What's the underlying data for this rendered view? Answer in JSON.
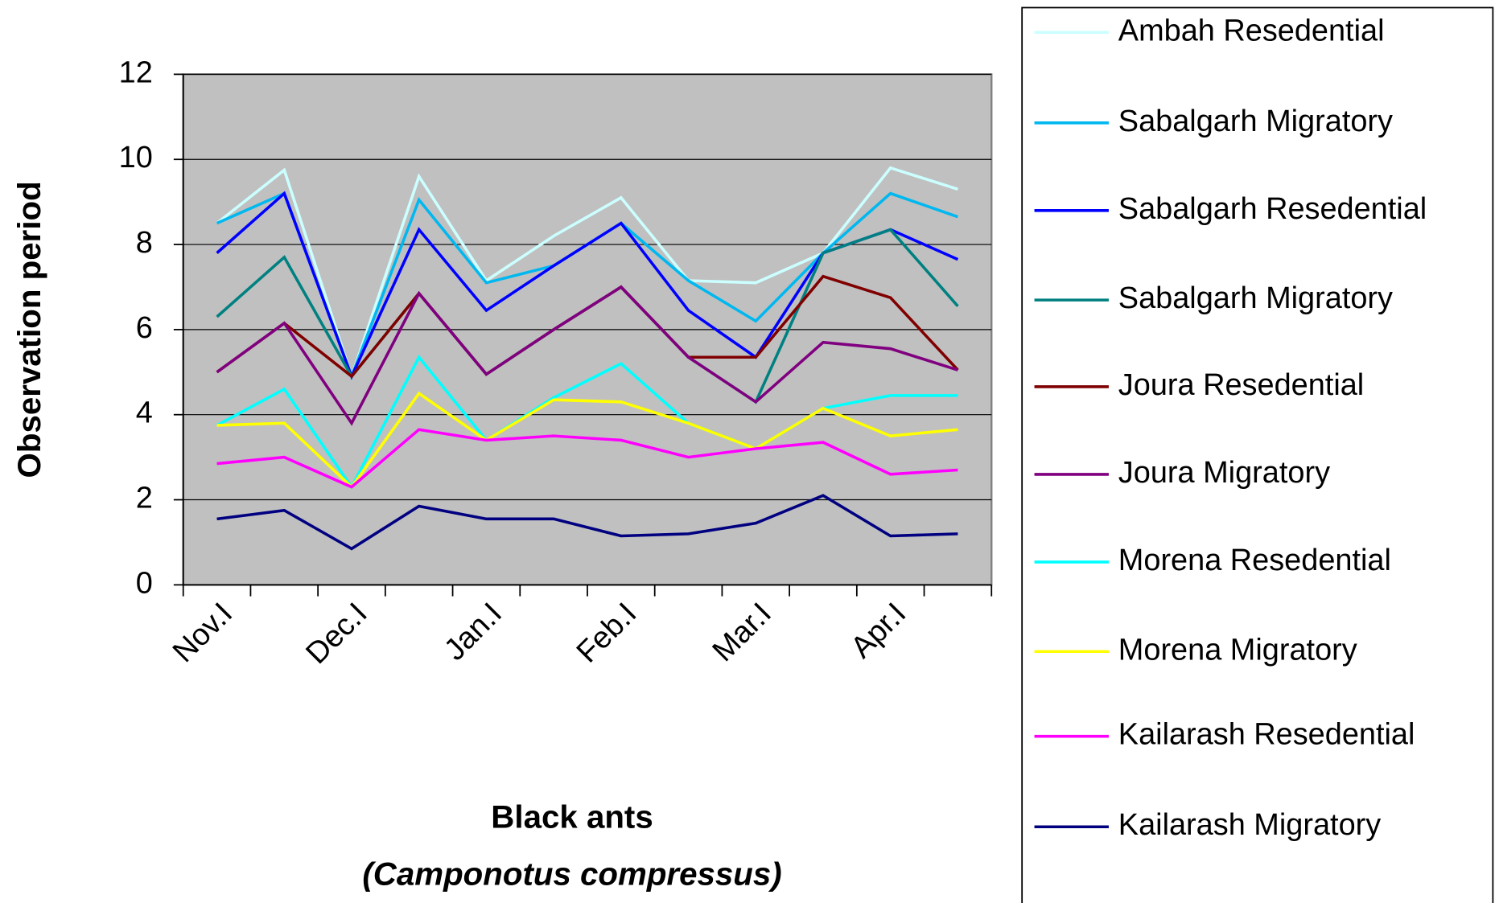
{
  "chart_data": {
    "type": "line",
    "ylabel": "Observation period",
    "xlabel": "Black ants",
    "xlabel_2": "(Camponotus compressus)",
    "categories": [
      "Nov.I",
      null,
      "Dec.I",
      null,
      "Jan.I",
      null,
      "Feb.I",
      null,
      "Mar.I",
      null,
      "Apr.I",
      null
    ],
    "ylim": [
      0,
      12
    ],
    "yticks": [
      0,
      2,
      4,
      6,
      8,
      10,
      12
    ],
    "grid": true,
    "legend": "right",
    "series": [
      {
        "name": "Ambah Resedential",
        "color": "#ccffff",
        "values": [
          8.5,
          9.75,
          4.9,
          9.6,
          7.15,
          8.2,
          9.1,
          7.15,
          7.1,
          7.8,
          9.8,
          9.3
        ]
      },
      {
        "name": "Sabalgarh Migratory",
        "color": "#00b8f0",
        "values": [
          8.5,
          9.2,
          4.9,
          9.05,
          7.1,
          7.5,
          8.5,
          7.15,
          6.2,
          7.8,
          9.2,
          8.65
        ]
      },
      {
        "name": "Sabalgarh Resedential",
        "color": "#0000ff",
        "values": [
          7.8,
          9.2,
          4.9,
          8.35,
          6.45,
          7.5,
          8.5,
          6.45,
          5.35,
          7.8,
          8.35,
          7.65
        ]
      },
      {
        "name": "Sabalgarh Migratory",
        "color": "#008080",
        "values": [
          6.3,
          7.7,
          4.9,
          6.85,
          4.95,
          6.0,
          7.0,
          5.35,
          4.3,
          7.8,
          8.35,
          6.55
        ]
      },
      {
        "name": "Joura Resedential",
        "color": "#800000",
        "values": [
          5.0,
          6.15,
          4.9,
          6.85,
          4.95,
          6.0,
          7.0,
          5.35,
          5.35,
          7.25,
          6.75,
          5.05
        ]
      },
      {
        "name": "Joura Migratory",
        "color": "#800080",
        "values": [
          5.0,
          6.15,
          3.8,
          6.85,
          4.95,
          6.0,
          7.0,
          5.35,
          4.3,
          5.7,
          5.55,
          5.05
        ]
      },
      {
        "name": "Morena Resedential",
        "color": "#00ffff",
        "values": [
          3.75,
          4.6,
          2.3,
          5.35,
          3.4,
          4.4,
          5.2,
          3.8,
          3.2,
          4.15,
          4.45,
          4.45
        ]
      },
      {
        "name": "Morena Migratory",
        "color": "#ffff00",
        "values": [
          3.75,
          3.8,
          2.3,
          4.5,
          3.4,
          4.35,
          4.3,
          3.8,
          3.2,
          4.15,
          3.5,
          3.65
        ]
      },
      {
        "name": "Kailarash Resedential",
        "color": "#ff00ff",
        "values": [
          2.85,
          3.0,
          2.3,
          3.65,
          3.4,
          3.5,
          3.4,
          3.0,
          3.2,
          3.35,
          2.6,
          2.7
        ]
      },
      {
        "name": "Kailarash Migratory",
        "color": "#000080",
        "values": [
          1.55,
          1.75,
          0.85,
          1.85,
          1.55,
          1.55,
          1.15,
          1.2,
          1.45,
          2.1,
          1.15,
          1.2
        ]
      }
    ]
  }
}
